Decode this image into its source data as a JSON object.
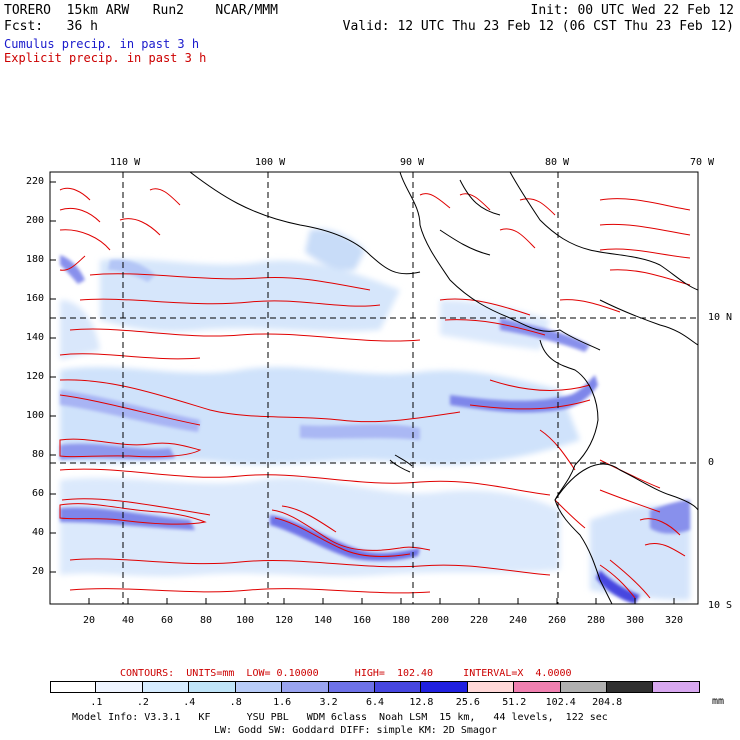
{
  "header": {
    "left_line1": "TORERO  15km ARW   Run2    NCAR/MMM",
    "left_line2": "Fcst:   36 h",
    "right_line1": "Init: 00 UTC Wed 22 Feb 12",
    "right_line2": "Valid: 12 UTC Thu 23 Feb 12 (06 CST Thu 23 Feb 12)",
    "legend_cumulus": "Cumulus precip. in past 3 h",
    "legend_explicit": "Explicit precip. in past 3 h",
    "legend_cumulus_color": "#1a1acc",
    "legend_explicit_color": "#cc0000"
  },
  "map": {
    "lon_labels": [
      "110 W",
      "100 W",
      "90 W",
      "80 W",
      "70 W"
    ],
    "lat_labels": [
      "10 N",
      "0",
      "10 S"
    ],
    "y_ticks": [
      "220",
      "200",
      "180",
      "160",
      "140",
      "120",
      "100",
      "80",
      "60",
      "40",
      "20"
    ],
    "x_ticks": [
      "20",
      "40",
      "60",
      "80",
      "100",
      "120",
      "140",
      "160",
      "180",
      "200",
      "220",
      "240",
      "260",
      "280",
      "300",
      "320"
    ]
  },
  "contour_info": "CONTOURS:  UNITS=mm  LOW= 0.10000      HIGH=  102.40     INTERVAL=X  4.0000",
  "colorbar": {
    "colors": [
      "#ffffff",
      "#eef4ff",
      "#d6ecff",
      "#c0e4f8",
      "#b8ccf8",
      "#9aa4f0",
      "#6e72e8",
      "#4646e0",
      "#2020e0",
      "#ffd8d8",
      "#f080b0",
      "#b0b0b0",
      "#303030",
      "#d8a8f0"
    ],
    "labels": [
      ".1",
      ".2",
      ".4",
      ".8",
      "1.6",
      "3.2",
      "6.4",
      "12.8",
      "25.6",
      "51.2",
      "102.4",
      "204.8"
    ],
    "units": "mm"
  },
  "footer": {
    "line1": "Model Info: V3.3.1   KF      YSU PBL   WDM 6class  Noah LSM  15 km,   44 levels,  122 sec",
    "line2": "LW: Godd SW: Goddard DIFF: simple KM: 2D Smagor"
  }
}
